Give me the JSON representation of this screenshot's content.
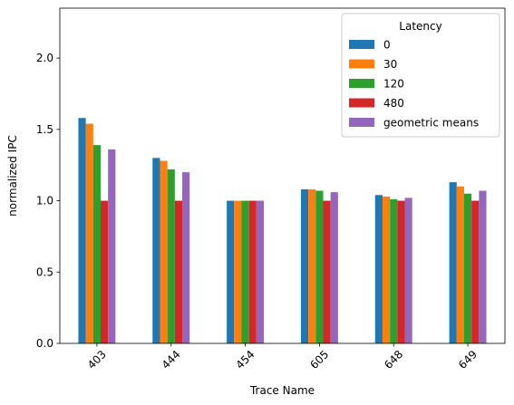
{
  "chart_data": {
    "type": "bar",
    "title": "",
    "xlabel": "Trace Name",
    "ylabel": "normalized IPC",
    "categories": [
      "403",
      "444",
      "454",
      "605",
      "648",
      "649"
    ],
    "ylim": [
      0,
      2.35
    ],
    "yticks": [
      0.0,
      0.5,
      1.0,
      1.5,
      2.0
    ],
    "ytick_labels": [
      "0.0",
      "0.5",
      "1.0",
      "1.5",
      "2.0"
    ],
    "xtick_rotation": 45,
    "grid": false,
    "legend": {
      "title": "Latency",
      "placement": "top-right"
    },
    "series": [
      {
        "name": "0",
        "color": "#1f77b4",
        "values": [
          1.58,
          1.3,
          1.0,
          1.08,
          1.04,
          1.13
        ]
      },
      {
        "name": "30",
        "color": "#ff7f0e",
        "values": [
          1.54,
          1.28,
          1.0,
          1.08,
          1.03,
          1.1
        ]
      },
      {
        "name": "120",
        "color": "#2ca02c",
        "values": [
          1.39,
          1.22,
          1.0,
          1.07,
          1.01,
          1.05
        ]
      },
      {
        "name": "480",
        "color": "#d62728",
        "values": [
          1.0,
          1.0,
          1.0,
          1.0,
          1.0,
          1.0
        ]
      },
      {
        "name": "geometric means",
        "color": "#9467bd",
        "values": [
          1.36,
          1.2,
          1.0,
          1.06,
          1.02,
          1.07
        ]
      }
    ]
  }
}
